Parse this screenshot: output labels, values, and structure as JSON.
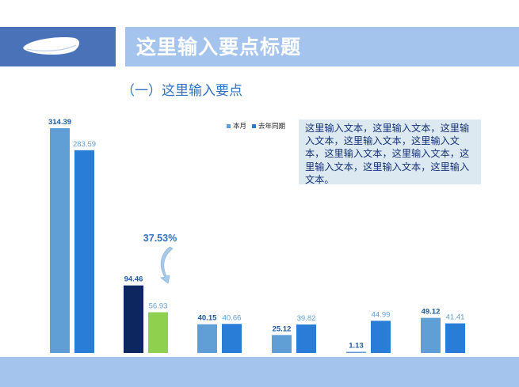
{
  "header": {
    "title": "这里输入要点标题"
  },
  "subtitle": "（一）这里输入要点",
  "text_box": "这里输入文本，这里输入文本，这里输入文本，这里输入文本，这里输入文本，这里输入文本，这里输入文本，这里输入文本，这里输入文本，这里输入文本。",
  "colors": {
    "header_dark": "#4a72b8",
    "header_light": "#a4c4ee",
    "bar_current": "#5f9fd6",
    "bar_last_year": "#2a7dd6",
    "highlight_current": "#0d2660",
    "highlight_last_year": "#8fd14f",
    "label": "#2e72c3"
  },
  "chart_data": {
    "type": "bar",
    "categories": [
      "",
      "",
      "",
      "",
      "",
      ""
    ],
    "series": [
      {
        "name": "本月",
        "values": [
          314.39,
          94.46,
          40.15,
          25.12,
          1.13,
          49.12
        ]
      },
      {
        "name": "去年同期",
        "values": [
          283.59,
          56.93,
          40.66,
          39.82,
          44.99,
          41.41
        ]
      }
    ],
    "ylim": [
      0,
      314.39
    ],
    "legend": "top",
    "annotation": "37.53%",
    "highlight_index": 1
  }
}
